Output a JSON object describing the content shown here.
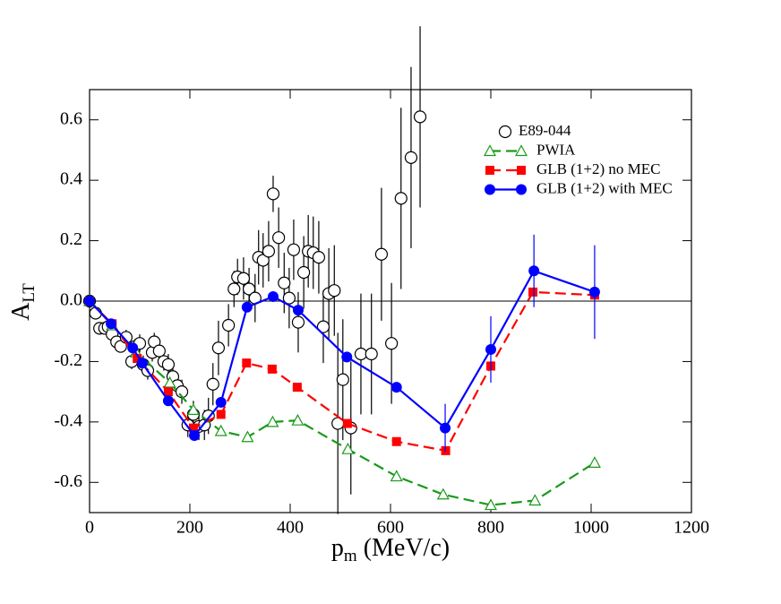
{
  "chart_data": {
    "type": "line",
    "x_label": {
      "main": "p",
      "sub": "m",
      "rest": " (MeV/c)"
    },
    "y_label": {
      "main": "A",
      "sub": "LT"
    },
    "xlim": [
      0,
      1200
    ],
    "ylim": [
      -0.7,
      0.7
    ],
    "xticks": [
      0,
      200,
      400,
      600,
      800,
      1000,
      1200
    ],
    "yticks": [
      -0.6,
      -0.4,
      -0.2,
      {
        "value": 0,
        "label": "0.0"
      },
      0.2,
      0.4,
      0.6
    ],
    "zero_line": true,
    "legend": "upper right",
    "series": [
      {
        "name": "E89-044",
        "color": "#000000",
        "marker": "circle-open",
        "style": "none",
        "x": [
          0,
          12,
          20,
          30,
          37,
          45,
          54,
          62,
          73,
          84,
          91,
          100,
          107,
          116,
          125,
          129,
          139,
          148,
          157,
          166,
          175,
          184,
          196,
          207,
          218,
          229,
          237,
          246,
          257,
          277,
          288,
          295,
          307,
          318,
          330,
          337,
          346,
          357,
          366,
          377,
          388,
          398,
          407,
          416,
          427,
          436,
          446,
          457,
          466,
          477,
          488,
          495,
          505,
          521,
          541,
          562,
          582,
          602,
          621,
          641,
          659
        ],
        "values": [
          0,
          -0.04,
          -0.09,
          -0.09,
          -0.085,
          -0.11,
          -0.135,
          -0.15,
          -0.12,
          -0.2,
          -0.15,
          -0.14,
          -0.21,
          -0.23,
          -0.17,
          -0.135,
          -0.165,
          -0.2,
          -0.21,
          -0.25,
          -0.28,
          -0.3,
          -0.41,
          -0.375,
          -0.415,
          -0.41,
          -0.38,
          -0.275,
          -0.155,
          -0.08,
          0.04,
          0.08,
          0.075,
          0.04,
          0.01,
          0.145,
          0.135,
          0.165,
          0.355,
          0.21,
          0.06,
          0.01,
          0.17,
          -0.07,
          0.095,
          0.165,
          0.16,
          0.145,
          -0.085,
          0.025,
          0.035,
          -0.405,
          -0.26,
          -0.42,
          -0.175,
          -0.175,
          0.155,
          -0.14,
          0.34,
          0.475,
          0.61
        ],
        "errors": [
          0.01,
          0.015,
          0.02,
          0.02,
          0.02,
          0.02,
          0.02,
          0.02,
          0.025,
          0.025,
          0.025,
          0.03,
          0.03,
          0.03,
          0.03,
          0.03,
          0.03,
          0.03,
          0.035,
          0.035,
          0.035,
          0.04,
          0.04,
          0.045,
          0.045,
          0.05,
          0.06,
          0.07,
          0.09,
          0.07,
          0.06,
          0.06,
          0.07,
          0.07,
          0.08,
          0.09,
          0.09,
          0.1,
          0.06,
          0.1,
          0.1,
          0.1,
          0.1,
          0.1,
          0.12,
          0.12,
          0.12,
          0.12,
          0.12,
          0.15,
          0.15,
          0.3,
          0.2,
          0.22,
          0.2,
          0.2,
          0.22,
          0.2,
          0.3,
          0.3,
          0.3
        ]
      },
      {
        "name": "PWIA",
        "color": "#1a9a1a",
        "marker": "triangle-open",
        "style": "dashed",
        "x": [
          0,
          45,
          93,
          160,
          207,
          262,
          315,
          365,
          415,
          515,
          612,
          705,
          800,
          888,
          1007
        ],
        "values": [
          0,
          -0.08,
          -0.17,
          -0.27,
          -0.36,
          -0.43,
          -0.45,
          -0.4,
          -0.395,
          -0.49,
          -0.58,
          -0.64,
          -0.675,
          -0.66,
          -0.535
        ]
      },
      {
        "name": "GLB (1+2) no MEC",
        "color": "#ff0000",
        "marker": "square",
        "style": "dashed",
        "x": [
          0,
          45,
          95,
          157,
          207,
          262,
          313,
          364,
          414,
          514,
          612,
          710,
          800,
          884,
          1007
        ],
        "values": [
          0,
          -0.075,
          -0.19,
          -0.3,
          -0.42,
          -0.375,
          -0.205,
          -0.225,
          -0.285,
          -0.405,
          -0.465,
          -0.495,
          -0.215,
          0.03,
          0.02
        ]
      },
      {
        "name": "GLB (1+2) with MEC",
        "color": "#0000ff",
        "marker": "circle",
        "style": "solid",
        "x": [
          0,
          43,
          86,
          105,
          157,
          209,
          262,
          314,
          366,
          416,
          513,
          612,
          709,
          800,
          886,
          1007
        ],
        "values": [
          0,
          -0.075,
          -0.155,
          -0.205,
          -0.33,
          -0.445,
          -0.335,
          -0.02,
          0.015,
          -0.03,
          -0.185,
          -0.285,
          -0.42,
          -0.16,
          0.1,
          0.03
        ],
        "errors": [
          null,
          null,
          null,
          null,
          null,
          null,
          null,
          null,
          null,
          null,
          null,
          null,
          0.08,
          0.11,
          0.12,
          0.155
        ]
      }
    ]
  }
}
